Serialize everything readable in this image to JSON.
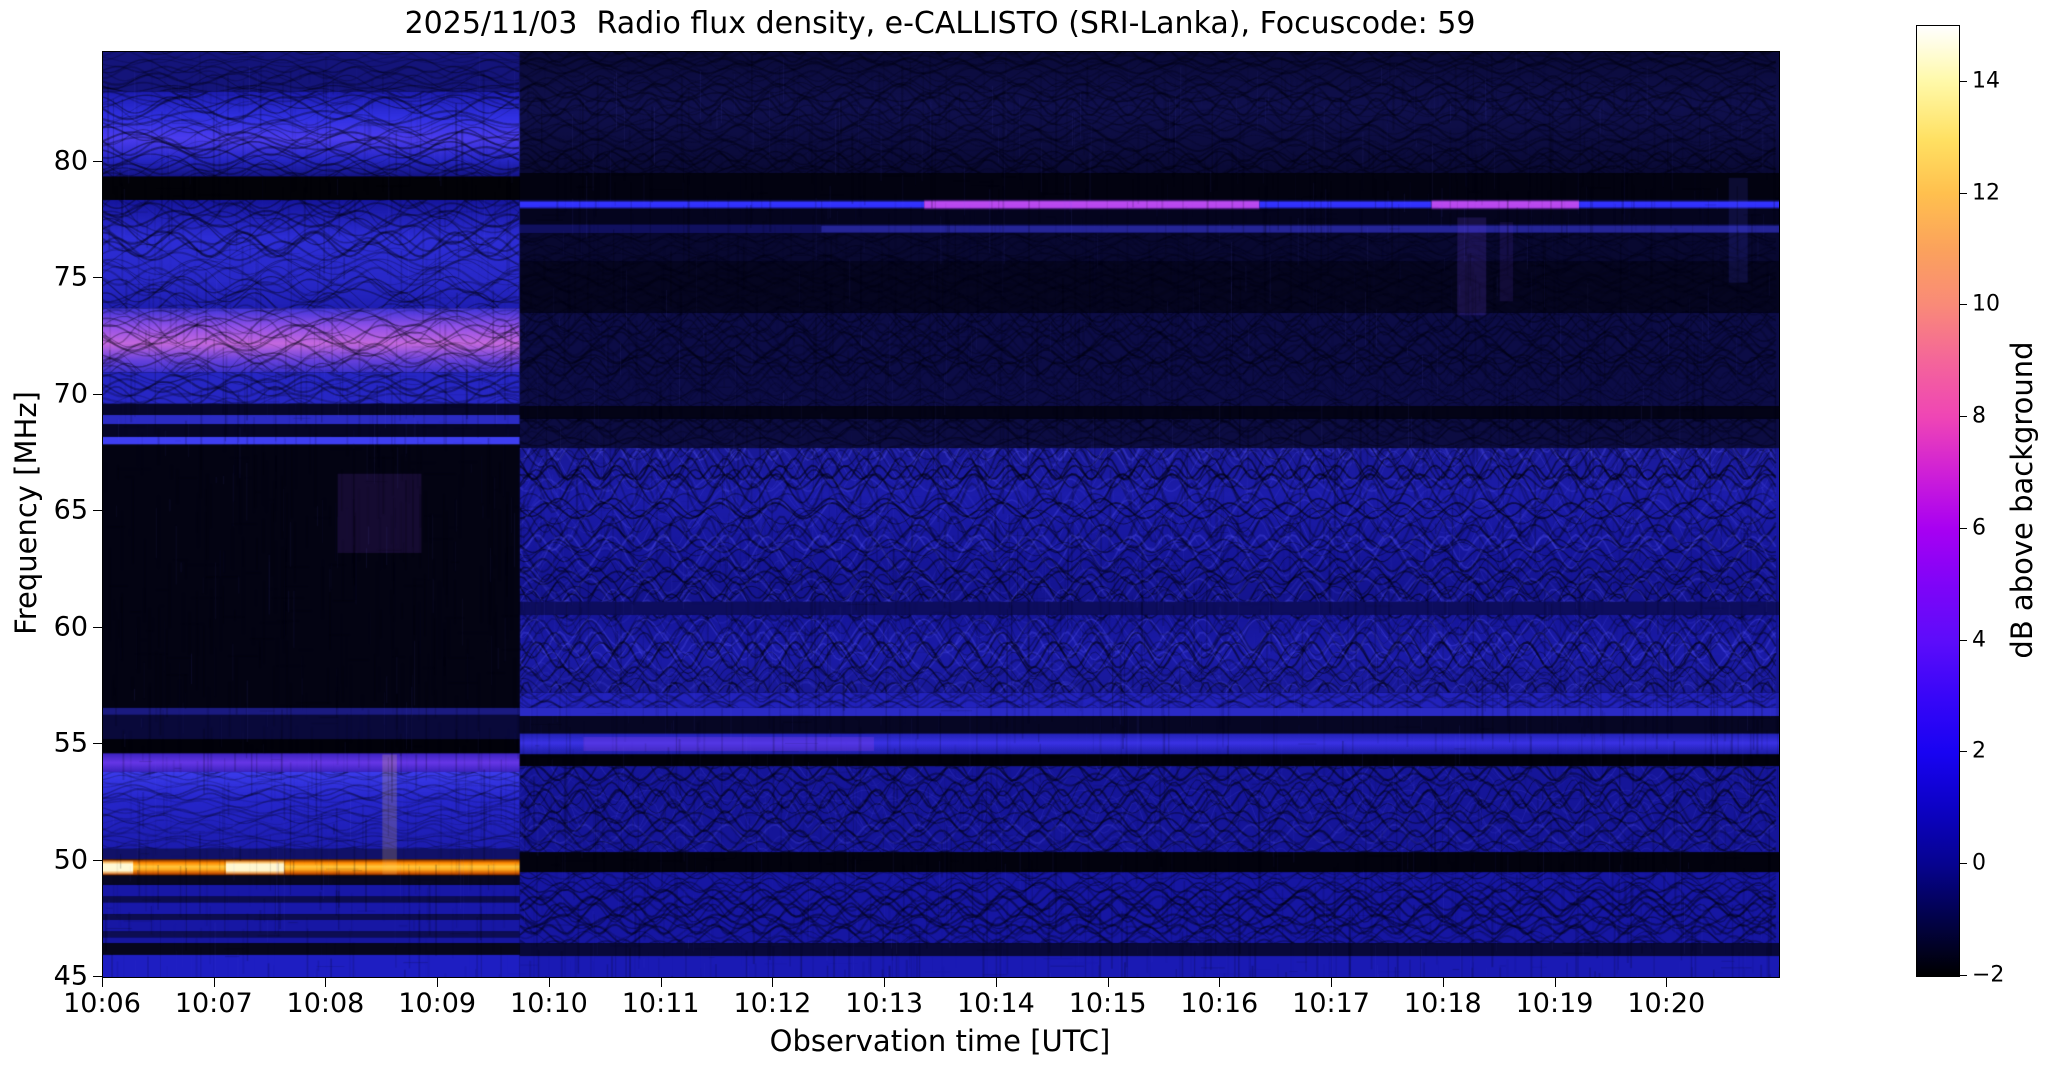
{
  "figure": {
    "title": "2025/11/03  Radio flux density, e-CALLISTO (SRI-Lanka), Focuscode: 59"
  },
  "chart_data": {
    "type": "heatmap",
    "subtype": "radio-spectrogram",
    "title": "2025/11/03  Radio flux density, e-CALLISTO (SRI-Lanka), Focuscode: 59",
    "xlabel": "Observation time [UTC]",
    "ylabel": "Frequency [MHz]",
    "x_ticks": [
      "10:06",
      "10:07",
      "10:08",
      "10:09",
      "10:10",
      "10:11",
      "10:12",
      "10:13",
      "10:14",
      "10:15",
      "10:16",
      "10:17",
      "10:18",
      "10:19",
      "10:20"
    ],
    "y_ticks": [
      45,
      50,
      55,
      60,
      65,
      70,
      75,
      80
    ],
    "x_range_minutes": [
      0,
      15
    ],
    "freq_range_mhz": [
      45,
      84.7
    ],
    "grid": false,
    "colorbar": {
      "label": "dB above background",
      "vmin": -2,
      "vmax": 15,
      "ticks": [
        14,
        12,
        10,
        8,
        6,
        4,
        2,
        0,
        -2
      ],
      "gradient": [
        [
          0,
          "#ffffff"
        ],
        [
          0.059,
          "#fff9a8"
        ],
        [
          0.12,
          "#ffe062"
        ],
        [
          0.176,
          "#ffc04e"
        ],
        [
          0.235,
          "#fba25c"
        ],
        [
          0.294,
          "#f98a78"
        ],
        [
          0.353,
          "#f4659a"
        ],
        [
          0.412,
          "#ef45b5"
        ],
        [
          0.47,
          "#cf20d6"
        ],
        [
          0.529,
          "#a800f2"
        ],
        [
          0.588,
          "#7f04f8"
        ],
        [
          0.647,
          "#5d0cfa"
        ],
        [
          0.706,
          "#3806f8"
        ],
        [
          0.765,
          "#1803f2"
        ],
        [
          0.824,
          "#0c02c4"
        ],
        [
          0.882,
          "#060390"
        ],
        [
          0.941,
          "#020248"
        ],
        [
          1,
          "#000000"
        ]
      ]
    },
    "segments": [
      {
        "name": "left-bright-segment",
        "t0": 0,
        "t1": 3.73,
        "bands": [
          {
            "f1": 84.7,
            "f0": 83.0,
            "c": "#14147a",
            "w": {
              "amp": 5,
              "len": 70,
              "alpha": 0.3
            }
          },
          {
            "f1": 83.0,
            "f0": 79.35,
            "s": [
              [
                0,
                "#1c1cae"
              ],
              [
                0.3,
                "#3030e2"
              ],
              [
                0.55,
                "#4b3cee"
              ],
              [
                0.8,
                "#2626c6"
              ],
              [
                1,
                "#131384"
              ]
            ],
            "w": {
              "amp": 9,
              "len": 95,
              "alpha": 0.34
            }
          },
          {
            "f1": 79.35,
            "f0": 78.35,
            "c": "#020208"
          },
          {
            "f1": 78.35,
            "f0": 73.7,
            "s": [
              [
                0,
                "#15159c"
              ],
              [
                0.35,
                "#2d2dd6"
              ],
              [
                0.75,
                "#2828c8"
              ],
              [
                1,
                "#1e1eb2"
              ]
            ],
            "w": {
              "amp": 10,
              "len": 90,
              "alpha": 0.34
            }
          },
          {
            "f1": 73.7,
            "f0": 70.95,
            "s": [
              [
                0,
                "#4034d8"
              ],
              [
                0.3,
                "#9552e8"
              ],
              [
                0.55,
                "#c468de"
              ],
              [
                0.8,
                "#6a42dc"
              ],
              [
                1,
                "#3b30cc"
              ]
            ],
            "w": {
              "amp": 9,
              "len": 85,
              "alpha": 0.3
            }
          },
          {
            "f1": 70.95,
            "f0": 69.6,
            "c": "#2626c4",
            "w": {
              "amp": 6,
              "len": 80,
              "alpha": 0.3
            }
          },
          {
            "f1": 69.6,
            "f0": 69.12,
            "c": "#06062c"
          },
          {
            "f1": 69.12,
            "f0": 68.72,
            "c": "#2b2bc4"
          },
          {
            "f1": 68.72,
            "f0": 68.18,
            "c": "#050526"
          },
          {
            "f1": 68.18,
            "f0": 67.85,
            "c": "#3e3ef2"
          },
          {
            "f1": 67.85,
            "f0": 56.55,
            "c": "#030312"
          },
          {
            "f1": 56.55,
            "f0": 56.25,
            "c": "#1a1a80"
          },
          {
            "f1": 56.25,
            "f0": 55.2,
            "c": "#09093a"
          },
          {
            "f1": 55.2,
            "f0": 54.6,
            "c": "#01010a"
          },
          {
            "f1": 54.6,
            "f0": 53.8,
            "s": [
              [
                0,
                "#3a22be"
              ],
              [
                0.5,
                "#6636e6"
              ],
              [
                1,
                "#3a22be"
              ]
            ]
          },
          {
            "f1": 53.8,
            "f0": 50.5,
            "s": [
              [
                0,
                "#3b3bec"
              ],
              [
                0.35,
                "#2626cc"
              ],
              [
                1,
                "#1c1cae"
              ]
            ],
            "w": {
              "amp": 4,
              "len": 60,
              "alpha": 0.22
            }
          },
          {
            "f1": 50.5,
            "f0": 50.05,
            "c": "#111168"
          },
          {
            "f1": 50.05,
            "f0": 49.35,
            "s": [
              [
                0,
                "#6e2400"
              ],
              [
                0.22,
                "#ff8a00"
              ],
              [
                0.45,
                "#ffc63c"
              ],
              [
                0.62,
                "#ffab1e"
              ],
              [
                0.85,
                "#cc5400"
              ],
              [
                1,
                "#4e1600"
              ]
            ]
          },
          {
            "f1": 49.35,
            "f0": 48.95,
            "c": "#070724"
          },
          {
            "f1": 48.95,
            "f0": 48.45,
            "c": "#1717a6"
          },
          {
            "f1": 48.45,
            "f0": 48.2,
            "c": "#0c0c50"
          },
          {
            "f1": 48.2,
            "f0": 47.7,
            "c": "#1818aa"
          },
          {
            "f1": 47.7,
            "f0": 47.45,
            "c": "#0c0c50"
          },
          {
            "f1": 47.45,
            "f0": 46.95,
            "c": "#1717a4"
          },
          {
            "f1": 46.95,
            "f0": 46.7,
            "c": "#0d0d52"
          },
          {
            "f1": 46.7,
            "f0": 46.45,
            "c": "#1616a0"
          },
          {
            "f1": 46.45,
            "f0": 45.95,
            "c": "#06061c"
          },
          {
            "f1": 45.95,
            "f0": 45.0,
            "c": "#1e1ec2"
          }
        ]
      },
      {
        "name": "right-dark-segment",
        "t0": 3.73,
        "t1": 15,
        "bands": [
          {
            "f1": 84.7,
            "f0": 79.5,
            "s": [
              [
                0,
                "#0a0a38"
              ],
              [
                0.45,
                "#10104e"
              ],
              [
                1,
                "#090934"
              ]
            ],
            "w": {
              "amp": 6,
              "len": 55,
              "alpha": 0.3
            }
          },
          {
            "f1": 79.5,
            "f0": 78.42,
            "c": "#020210"
          },
          {
            "f1": 78.42,
            "f0": 77.92,
            "c": "#04041a"
          },
          {
            "f1": 77.92,
            "f0": 77.3,
            "c": "#04041e"
          },
          {
            "f1": 77.3,
            "f0": 76.92,
            "c": "#10105e"
          },
          {
            "f1": 76.92,
            "f0": 75.7,
            "c": "#080830",
            "w": {
              "amp": 5,
              "len": 50,
              "alpha": 0.25
            }
          },
          {
            "f1": 75.7,
            "f0": 73.5,
            "c": "#050520",
            "w": {
              "amp": 5,
              "len": 50,
              "alpha": 0.22
            }
          },
          {
            "f1": 73.5,
            "f0": 69.5,
            "c": "#0c0c46",
            "w": {
              "amp": 8,
              "len": 48,
              "alpha": 0.32
            }
          },
          {
            "f1": 69.5,
            "f0": 68.95,
            "c": "#030316"
          },
          {
            "f1": 68.95,
            "f0": 67.7,
            "c": "#0c0c42",
            "w": {
              "amp": 6,
              "len": 48,
              "alpha": 0.3
            }
          },
          {
            "f1": 67.7,
            "f0": 61.1,
            "s": [
              [
                0,
                "#191996"
              ],
              [
                0.3,
                "#1c1caa"
              ],
              [
                0.7,
                "#16169a"
              ],
              [
                1,
                "#14148e"
              ]
            ],
            "w": {
              "amp": 11,
              "len": 46,
              "alpha": 0.42,
              "light": 1
            }
          },
          {
            "f1": 61.1,
            "f0": 60.55,
            "c": "#0d0d5e"
          },
          {
            "f1": 60.55,
            "f0": 57.2,
            "s": [
              [
                0,
                "#16169a"
              ],
              [
                0.5,
                "#1b1ba8"
              ],
              [
                1,
                "#181896"
              ]
            ],
            "w": {
              "amp": 11,
              "len": 44,
              "alpha": 0.42,
              "light": 1
            }
          },
          {
            "f1": 57.2,
            "f0": 56.55,
            "c": "#2222bc",
            "w": {
              "amp": 5,
              "len": 44,
              "alpha": 0.3
            }
          },
          {
            "f1": 56.55,
            "f0": 56.2,
            "c": "#2a2ac6"
          },
          {
            "f1": 56.2,
            "f0": 55.45,
            "c": "#060624"
          },
          {
            "f1": 55.45,
            "f0": 54.55,
            "s": [
              [
                0,
                "#2020b2"
              ],
              [
                0.45,
                "#3a32e4"
              ],
              [
                1,
                "#1c1ca4"
              ]
            ]
          },
          {
            "f1": 54.55,
            "f0": 54.05,
            "c": "#01010c"
          },
          {
            "f1": 54.05,
            "f0": 50.35,
            "c": "#151598",
            "w": {
              "amp": 9,
              "len": 42,
              "alpha": 0.38,
              "light": 1
            }
          },
          {
            "f1": 50.35,
            "f0": 49.5,
            "c": "#02020e"
          },
          {
            "f1": 49.5,
            "f0": 46.45,
            "c": "#1616a2",
            "w": {
              "amp": 7,
              "len": 46,
              "alpha": 0.34
            }
          },
          {
            "f1": 46.45,
            "f0": 45.9,
            "c": "#08083a"
          },
          {
            "f1": 45.9,
            "f0": 45.0,
            "c": "#1a1ab4"
          }
        ]
      }
    ],
    "features": [
      {
        "name": "hot-white-segment-1",
        "t0": 0,
        "t1": 0.27,
        "f1": 50.02,
        "f0": 49.38,
        "s": [
          [
            0,
            "rgba(255,252,210,0)"
          ],
          [
            0.3,
            "rgba(255,253,222,0.95)"
          ],
          [
            0.7,
            "rgba(255,253,222,0.95)"
          ],
          [
            1,
            "rgba(255,252,210,0)"
          ]
        ]
      },
      {
        "name": "hot-white-segment-2",
        "t0": 1.1,
        "t1": 1.62,
        "f1": 50.02,
        "f0": 49.38,
        "s": [
          [
            0,
            "rgba(255,252,210,0)"
          ],
          [
            0.3,
            "rgba(255,253,222,0.92)"
          ],
          [
            0.7,
            "rgba(255,253,222,0.92)"
          ],
          [
            1,
            "rgba(255,252,210,0)"
          ]
        ]
      },
      {
        "name": "vertical-streak-left",
        "t0": 2.5,
        "t1": 2.63,
        "f1": 54.55,
        "f0": 49.4,
        "c": "rgba(255,205,110,0.20)"
      },
      {
        "name": "purple-smudge-left",
        "t0": 2.1,
        "t1": 2.85,
        "f1": 66.6,
        "f0": 63.2,
        "c": "rgba(95,45,175,0.20)"
      },
      {
        "name": "rfi-78mhz-blue-1",
        "t0": 3.73,
        "t1": 7.35,
        "f1": 78.36,
        "f0": 77.94,
        "s": [
          [
            0,
            "rgba(30,30,200,0)"
          ],
          [
            0.28,
            "#3434ff"
          ],
          [
            0.72,
            "#3030fa"
          ],
          [
            1,
            "rgba(30,30,200,0)"
          ]
        ]
      },
      {
        "name": "rfi-78mhz-magenta-1",
        "t0": 7.35,
        "t1": 10.35,
        "f1": 78.38,
        "f0": 77.92,
        "s": [
          [
            0,
            "rgba(140,40,230,0)"
          ],
          [
            0.25,
            "#bb4cf0"
          ],
          [
            0.75,
            "#b846ee"
          ],
          [
            1,
            "rgba(140,40,230,0)"
          ]
        ]
      },
      {
        "name": "rfi-78mhz-blue-2",
        "t0": 10.35,
        "t1": 11.89,
        "f1": 78.36,
        "f0": 77.94,
        "s": [
          [
            0,
            "rgba(30,30,200,0)"
          ],
          [
            0.28,
            "#3434ff"
          ],
          [
            0.72,
            "#3030fa"
          ],
          [
            1,
            "rgba(30,30,200,0)"
          ]
        ]
      },
      {
        "name": "rfi-78mhz-magenta-2",
        "t0": 11.89,
        "t1": 13.21,
        "f1": 78.38,
        "f0": 77.92,
        "s": [
          [
            0,
            "rgba(140,40,230,0)"
          ],
          [
            0.25,
            "#bb4cf0"
          ],
          [
            0.75,
            "#b846ee"
          ],
          [
            1,
            "rgba(140,40,230,0)"
          ]
        ]
      },
      {
        "name": "rfi-78mhz-blue-3",
        "t0": 13.21,
        "t1": 15,
        "f1": 78.36,
        "f0": 77.94,
        "s": [
          [
            0,
            "rgba(30,30,200,0)"
          ],
          [
            0.28,
            "#3434ff"
          ],
          [
            0.72,
            "#3030fa"
          ],
          [
            1,
            "rgba(30,30,200,0)"
          ]
        ]
      },
      {
        "name": "rfi-77mhz-faint",
        "t0": 6.43,
        "t1": 15,
        "f1": 77.24,
        "f0": 76.96,
        "c": "rgba(70,70,235,0.40)"
      },
      {
        "name": "violet-tinge-55mhz",
        "t0": 4.3,
        "t1": 6.9,
        "f1": 55.3,
        "f0": 54.7,
        "c": "rgba(150,70,235,0.28)"
      },
      {
        "name": "vertical-streak-right-1",
        "t0": 12.12,
        "t1": 12.38,
        "f1": 77.6,
        "f0": 73.4,
        "c": "rgba(105,65,225,0.20)"
      },
      {
        "name": "vertical-streak-right-2",
        "t0": 12.5,
        "t1": 12.62,
        "f1": 77.4,
        "f0": 74.0,
        "c": "rgba(105,65,225,0.13)"
      },
      {
        "name": "edge-bright-column",
        "t0": 14.55,
        "t1": 14.72,
        "f1": 79.3,
        "f0": 74.8,
        "c": "rgba(70,70,230,0.16)"
      }
    ],
    "noise": {
      "v_dark": 2600,
      "v_bright": 1400,
      "h_speckle": 900
    }
  }
}
